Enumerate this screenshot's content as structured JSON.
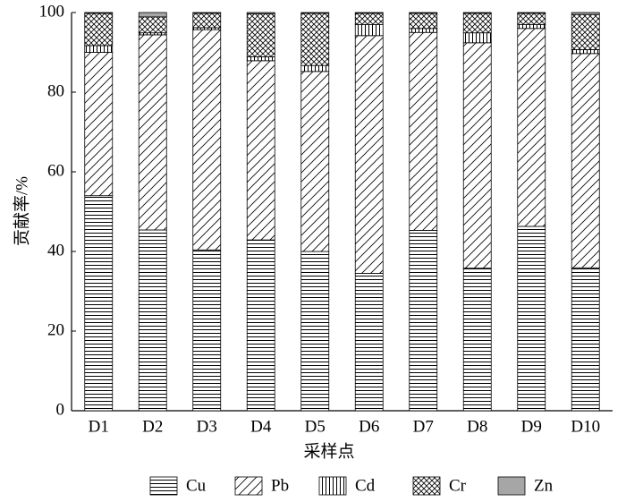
{
  "chart_data": {
    "type": "stacked_bar",
    "x_label": "采样点",
    "y_label": "贡献率/%",
    "categories": [
      "D1",
      "D2",
      "D3",
      "D4",
      "D5",
      "D6",
      "D7",
      "D8",
      "D9",
      "D10"
    ],
    "series": [
      {
        "name": "Cu",
        "color": "#000000",
        "pattern": "horizontal",
        "values": [
          54,
          45.4,
          40.4,
          42.9,
          40,
          34.5,
          45.3,
          35.8,
          46.3,
          35.9
        ]
      },
      {
        "name": "Pb",
        "color": "#000000",
        "pattern": "diagonal",
        "values": [
          36,
          49,
          55.3,
          45,
          45.2,
          59.7,
          49.7,
          56.6,
          49.7,
          53.8
        ]
      },
      {
        "name": "Cd",
        "color": "#000000",
        "pattern": "vertical",
        "values": [
          1.7,
          0.5,
          0.5,
          1,
          1.5,
          2.8,
          1,
          2.5,
          1,
          1
        ]
      },
      {
        "name": "Cr",
        "color": "#000000",
        "pattern": "crosshatch",
        "values": [
          8.1,
          4,
          3.6,
          10.8,
          13.1,
          2.8,
          3.8,
          4.9,
          2.8,
          8.8
        ]
      },
      {
        "name": "Zn",
        "color": "#a6a6a6",
        "pattern": "solid",
        "values": [
          0.2,
          1.1,
          0.2,
          0.3,
          0.2,
          0.2,
          0.2,
          0.2,
          0.2,
          0.5
        ]
      }
    ],
    "ylim": [
      0,
      100
    ],
    "yticks": [
      0,
      20,
      40,
      60,
      80,
      100
    ],
    "grid": false,
    "legend": "bottom"
  }
}
